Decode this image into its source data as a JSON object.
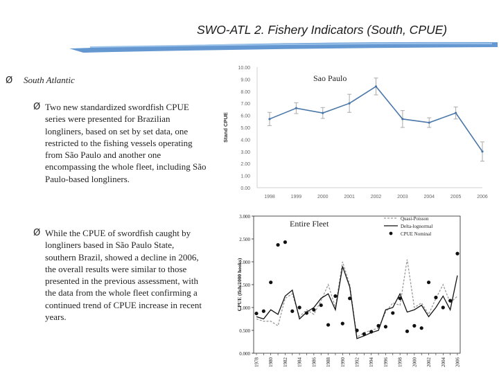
{
  "slide": {
    "title": "SWO-ATL 2. Fishery Indicators (South, CPUE)",
    "bullet_main": "South Atlantic",
    "bullet_glyph": "Ø",
    "sub_bullets": [
      "Two new standardized swordfish CPUE series were presented for Brazilian longliners, based on set by set data, one restricted to the fishing vessels operating from São Paulo and another one encompassing the whole fleet, including São Paulo-based longliners.",
      "While the CPUE of swordfish caught by longliners based in São Paulo State, southern Brazil, showed a decline in 2006, the overall results were similar to those presented in the previous assessment, with the data from the whole fleet confirming a continued trend of CPUE increase in recent years."
    ]
  },
  "chart_data": [
    {
      "type": "line",
      "title": "Sao Paulo",
      "ylabel": "Stand CPUE",
      "xlabel": "",
      "ylim": [
        0,
        10
      ],
      "yticks": [
        "0.00",
        "1.00",
        "2.00",
        "3.00",
        "4.00",
        "5.00",
        "6.00",
        "7.00",
        "8.00",
        "9.00",
        "10.00"
      ],
      "x": [
        "1998",
        "1999",
        "2000",
        "2001",
        "2002",
        "2003",
        "2004",
        "2005",
        "2006"
      ],
      "series": [
        {
          "values": [
            5.7,
            6.6,
            6.2,
            7.0,
            8.4,
            5.7,
            5.4,
            6.2,
            3.0
          ],
          "err": [
            0.55,
            0.45,
            0.45,
            0.75,
            0.7,
            0.7,
            0.4,
            0.5,
            0.8
          ]
        }
      ],
      "color": "#4a77a8",
      "grid": false
    },
    {
      "type": "line",
      "title": "Entire Fleet",
      "ylabel": "CPUE (fish/1000 hooks)",
      "xlabel": "",
      "ylim": [
        0,
        3
      ],
      "yticks": [
        "0.000",
        "0.500",
        "1.000",
        "1.500",
        "2.000",
        "2.500",
        "3.000"
      ],
      "x": [
        "1978",
        "1979",
        "1980",
        "1981",
        "1982",
        "1983",
        "1984",
        "1985",
        "1986",
        "1987",
        "1988",
        "1989",
        "1990",
        "1991",
        "1992",
        "1993",
        "1994",
        "1995",
        "1996",
        "1997",
        "1998",
        "1999",
        "2000",
        "2001",
        "2002",
        "2003",
        "2004",
        "2005",
        "2006"
      ],
      "xticks_shown": [
        "1978",
        "1980",
        "1982",
        "1984",
        "1986",
        "1988",
        "1990",
        "1992",
        "1994",
        "1996",
        "1998",
        "2000",
        "2002",
        "2004",
        "2006"
      ],
      "legend": {
        "position": "top-right",
        "entries": [
          "Quasi-Poisson",
          "Delta-lognormal",
          "CPUE Nominal"
        ]
      },
      "series": [
        {
          "name": "Quasi-Poisson",
          "style": "dashed",
          "color": "#999999",
          "values": [
            0.75,
            0.7,
            0.7,
            0.6,
            1.2,
            1.3,
            0.8,
            0.95,
            0.85,
            1.15,
            1.5,
            1.0,
            2.0,
            1.5,
            0.35,
            0.45,
            0.5,
            0.55,
            0.9,
            1.1,
            1.05,
            2.05,
            1.0,
            1.1,
            0.85,
            1.2,
            1.5,
            1.1,
            1.25
          ]
        },
        {
          "name": "Delta-lognormal",
          "style": "solid",
          "color": "#111111",
          "values": [
            0.8,
            0.75,
            0.95,
            0.85,
            1.25,
            1.38,
            0.75,
            0.9,
            1.0,
            1.2,
            1.3,
            0.95,
            1.9,
            1.45,
            0.32,
            0.38,
            0.45,
            0.5,
            0.95,
            1.0,
            1.3,
            0.9,
            0.95,
            1.05,
            0.8,
            1.0,
            1.25,
            0.95,
            1.7
          ]
        },
        {
          "name": "CPUE Nominal",
          "style": "markers",
          "color": "#111111",
          "values": [
            0.87,
            0.92,
            1.55,
            2.37,
            2.43,
            0.92,
            1.0,
            0.88,
            0.95,
            1.05,
            0.62,
            1.25,
            0.65,
            1.2,
            0.5,
            0.42,
            0.47,
            0.6,
            0.58,
            0.88,
            1.2,
            0.48,
            0.6,
            0.55,
            1.55,
            1.22,
            1.0,
            1.15,
            2.18
          ]
        }
      ]
    }
  ]
}
